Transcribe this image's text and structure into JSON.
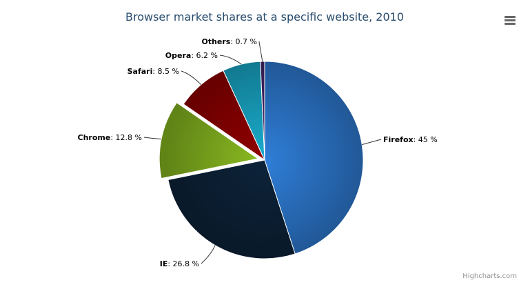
{
  "chart_data": {
    "type": "pie",
    "title": "Browser market shares at a specific website, 2010",
    "unit": "%",
    "sliced": "Chrome",
    "slices": [
      {
        "name": "Firefox",
        "value": 45,
        "color": "#2f7ed8"
      },
      {
        "name": "IE",
        "value": 26.8,
        "color": "#0d233a"
      },
      {
        "name": "Chrome",
        "value": 12.8,
        "color": "#8bbc21"
      },
      {
        "name": "Safari",
        "value": 8.5,
        "color": "#910000"
      },
      {
        "name": "Opera",
        "value": 6.2,
        "color": "#1aadce"
      },
      {
        "name": "Others",
        "value": 0.7,
        "color": "#492970"
      }
    ]
  },
  "credits": "Highcharts.com",
  "menu_icon": "hamburger-menu-icon"
}
